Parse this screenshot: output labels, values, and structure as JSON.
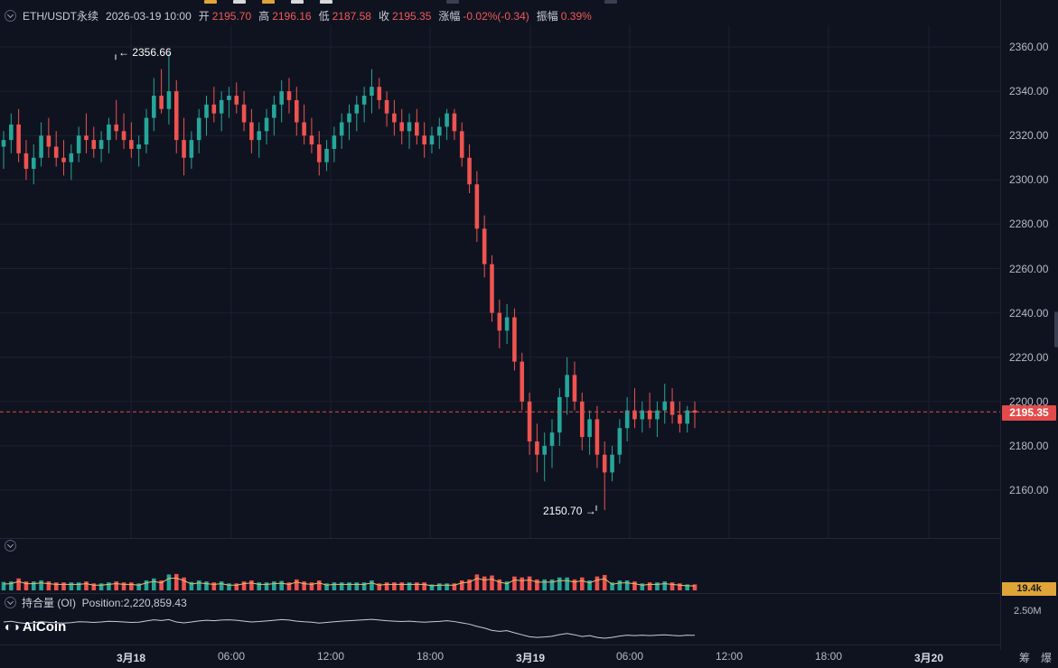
{
  "header": {
    "symbol": "ETH/USDT永续",
    "datetime": "2026-03-19 10:00",
    "open_label": "开",
    "open": "2195.70",
    "high_label": "高",
    "high": "2196.16",
    "low_label": "低",
    "low": "2187.58",
    "close_label": "收",
    "close": "2195.35",
    "change_label": "涨幅",
    "change": "-0.02%(-0.34)",
    "amplitude_label": "振幅",
    "amplitude": "0.39%"
  },
  "price_axis": {
    "ticks": [
      "2360.00",
      "2340.00",
      "2320.00",
      "2300.00",
      "2280.00",
      "2260.00",
      "2240.00",
      "2220.00",
      "2200.00",
      "2180.00",
      "2160.00"
    ],
    "current_price": "2195.35"
  },
  "annotations": {
    "high_marker": "← 2356.66",
    "low_marker": "2150.70 →"
  },
  "volume": {
    "current": "19.4k"
  },
  "open_interest": {
    "label": "持合量 (OI)",
    "value_text": "Position:2,220,859.43",
    "axis_tick": "2.50M"
  },
  "logo": {
    "text": "AiCoin"
  },
  "time_axis": {
    "labels": [
      {
        "text": "3月18",
        "bold": true
      },
      {
        "text": "06:00",
        "bold": false
      },
      {
        "text": "12:00",
        "bold": false
      },
      {
        "text": "18:00",
        "bold": false
      },
      {
        "text": "3月19",
        "bold": true
      },
      {
        "text": "06:00",
        "bold": false
      },
      {
        "text": "12:00",
        "bold": false
      },
      {
        "text": "18:00",
        "bold": false
      },
      {
        "text": "3月20",
        "bold": true
      }
    ],
    "corner_left": "筹",
    "corner_right": "爆"
  },
  "colors": {
    "up": "#26a69a",
    "down": "#ef5350",
    "grid": "#1b2030",
    "price_line": "#e34b4b"
  },
  "chart_data": {
    "type": "candlestick",
    "title": "ETH/USDT永续",
    "ylim": [
      2140,
      2366
    ],
    "series_ohlc": [
      [
        2315,
        2322,
        2305,
        2318
      ],
      [
        2318,
        2330,
        2312,
        2325
      ],
      [
        2325,
        2332,
        2308,
        2312
      ],
      [
        2312,
        2318,
        2300,
        2305
      ],
      [
        2305,
        2316,
        2298,
        2310
      ],
      [
        2310,
        2326,
        2306,
        2320
      ],
      [
        2320,
        2328,
        2310,
        2315
      ],
      [
        2315,
        2322,
        2306,
        2310
      ],
      [
        2310,
        2318,
        2302,
        2308
      ],
      [
        2308,
        2316,
        2300,
        2312
      ],
      [
        2312,
        2324,
        2308,
        2320
      ],
      [
        2320,
        2330,
        2312,
        2318
      ],
      [
        2318,
        2324,
        2310,
        2314
      ],
      [
        2314,
        2322,
        2308,
        2318
      ],
      [
        2318,
        2328,
        2312,
        2325
      ],
      [
        2325,
        2336,
        2318,
        2322
      ],
      [
        2322,
        2330,
        2314,
        2318
      ],
      [
        2318,
        2326,
        2310,
        2314
      ],
      [
        2314,
        2320,
        2306,
        2316
      ],
      [
        2316,
        2332,
        2312,
        2328
      ],
      [
        2328,
        2346,
        2322,
        2338
      ],
      [
        2338,
        2350,
        2330,
        2332
      ],
      [
        2332,
        2357,
        2325,
        2340
      ],
      [
        2340,
        2345,
        2312,
        2318
      ],
      [
        2318,
        2328,
        2302,
        2310
      ],
      [
        2310,
        2322,
        2305,
        2318
      ],
      [
        2318,
        2332,
        2312,
        2328
      ],
      [
        2328,
        2338,
        2320,
        2334
      ],
      [
        2334,
        2342,
        2326,
        2330
      ],
      [
        2330,
        2340,
        2322,
        2336
      ],
      [
        2336,
        2342,
        2328,
        2338
      ],
      [
        2338,
        2344,
        2330,
        2334
      ],
      [
        2334,
        2340,
        2322,
        2326
      ],
      [
        2326,
        2332,
        2312,
        2318
      ],
      [
        2318,
        2326,
        2310,
        2322
      ],
      [
        2322,
        2332,
        2316,
        2328
      ],
      [
        2328,
        2338,
        2320,
        2334
      ],
      [
        2334,
        2345,
        2326,
        2340
      ],
      [
        2340,
        2346,
        2330,
        2336
      ],
      [
        2336,
        2342,
        2320,
        2326
      ],
      [
        2326,
        2334,
        2316,
        2320
      ],
      [
        2320,
        2328,
        2312,
        2316
      ],
      [
        2316,
        2322,
        2302,
        2308
      ],
      [
        2308,
        2318,
        2304,
        2314
      ],
      [
        2314,
        2324,
        2308,
        2320
      ],
      [
        2320,
        2330,
        2314,
        2326
      ],
      [
        2326,
        2334,
        2318,
        2330
      ],
      [
        2330,
        2338,
        2322,
        2334
      ],
      [
        2334,
        2342,
        2326,
        2338
      ],
      [
        2338,
        2350,
        2330,
        2342
      ],
      [
        2342,
        2346,
        2332,
        2336
      ],
      [
        2336,
        2340,
        2324,
        2330
      ],
      [
        2330,
        2336,
        2320,
        2326
      ],
      [
        2326,
        2332,
        2316,
        2322
      ],
      [
        2322,
        2330,
        2314,
        2326
      ],
      [
        2326,
        2332,
        2316,
        2320
      ],
      [
        2320,
        2326,
        2310,
        2316
      ],
      [
        2316,
        2324,
        2312,
        2320
      ],
      [
        2320,
        2328,
        2314,
        2324
      ],
      [
        2324,
        2332,
        2318,
        2330
      ],
      [
        2330,
        2332,
        2318,
        2322
      ],
      [
        2322,
        2326,
        2306,
        2310
      ],
      [
        2310,
        2316,
        2294,
        2298
      ],
      [
        2298,
        2304,
        2272,
        2278
      ],
      [
        2278,
        2284,
        2256,
        2262
      ],
      [
        2262,
        2266,
        2236,
        2240
      ],
      [
        2240,
        2246,
        2224,
        2232
      ],
      [
        2232,
        2244,
        2226,
        2238
      ],
      [
        2238,
        2242,
        2214,
        2218
      ],
      [
        2218,
        2222,
        2196,
        2200
      ],
      [
        2200,
        2204,
        2176,
        2182
      ],
      [
        2182,
        2190,
        2168,
        2176
      ],
      [
        2176,
        2186,
        2164,
        2180
      ],
      [
        2180,
        2192,
        2170,
        2186
      ],
      [
        2186,
        2206,
        2180,
        2202
      ],
      [
        2202,
        2220,
        2194,
        2212
      ],
      [
        2212,
        2218,
        2196,
        2200
      ],
      [
        2200,
        2204,
        2178,
        2184
      ],
      [
        2184,
        2196,
        2176,
        2192
      ],
      [
        2192,
        2198,
        2170,
        2176
      ],
      [
        2176,
        2182,
        2151,
        2168
      ],
      [
        2168,
        2180,
        2164,
        2176
      ],
      [
        2176,
        2192,
        2172,
        2188
      ],
      [
        2188,
        2202,
        2182,
        2196
      ],
      [
        2196,
        2206,
        2188,
        2192
      ],
      [
        2192,
        2200,
        2186,
        2196
      ],
      [
        2196,
        2204,
        2188,
        2192
      ],
      [
        2192,
        2200,
        2184,
        2196
      ],
      [
        2196,
        2208,
        2190,
        2200
      ],
      [
        2200,
        2206,
        2190,
        2194
      ],
      [
        2194,
        2200,
        2186,
        2190
      ],
      [
        2190,
        2198,
        2186,
        2196
      ],
      [
        2196,
        2200,
        2188,
        2195
      ]
    ]
  }
}
